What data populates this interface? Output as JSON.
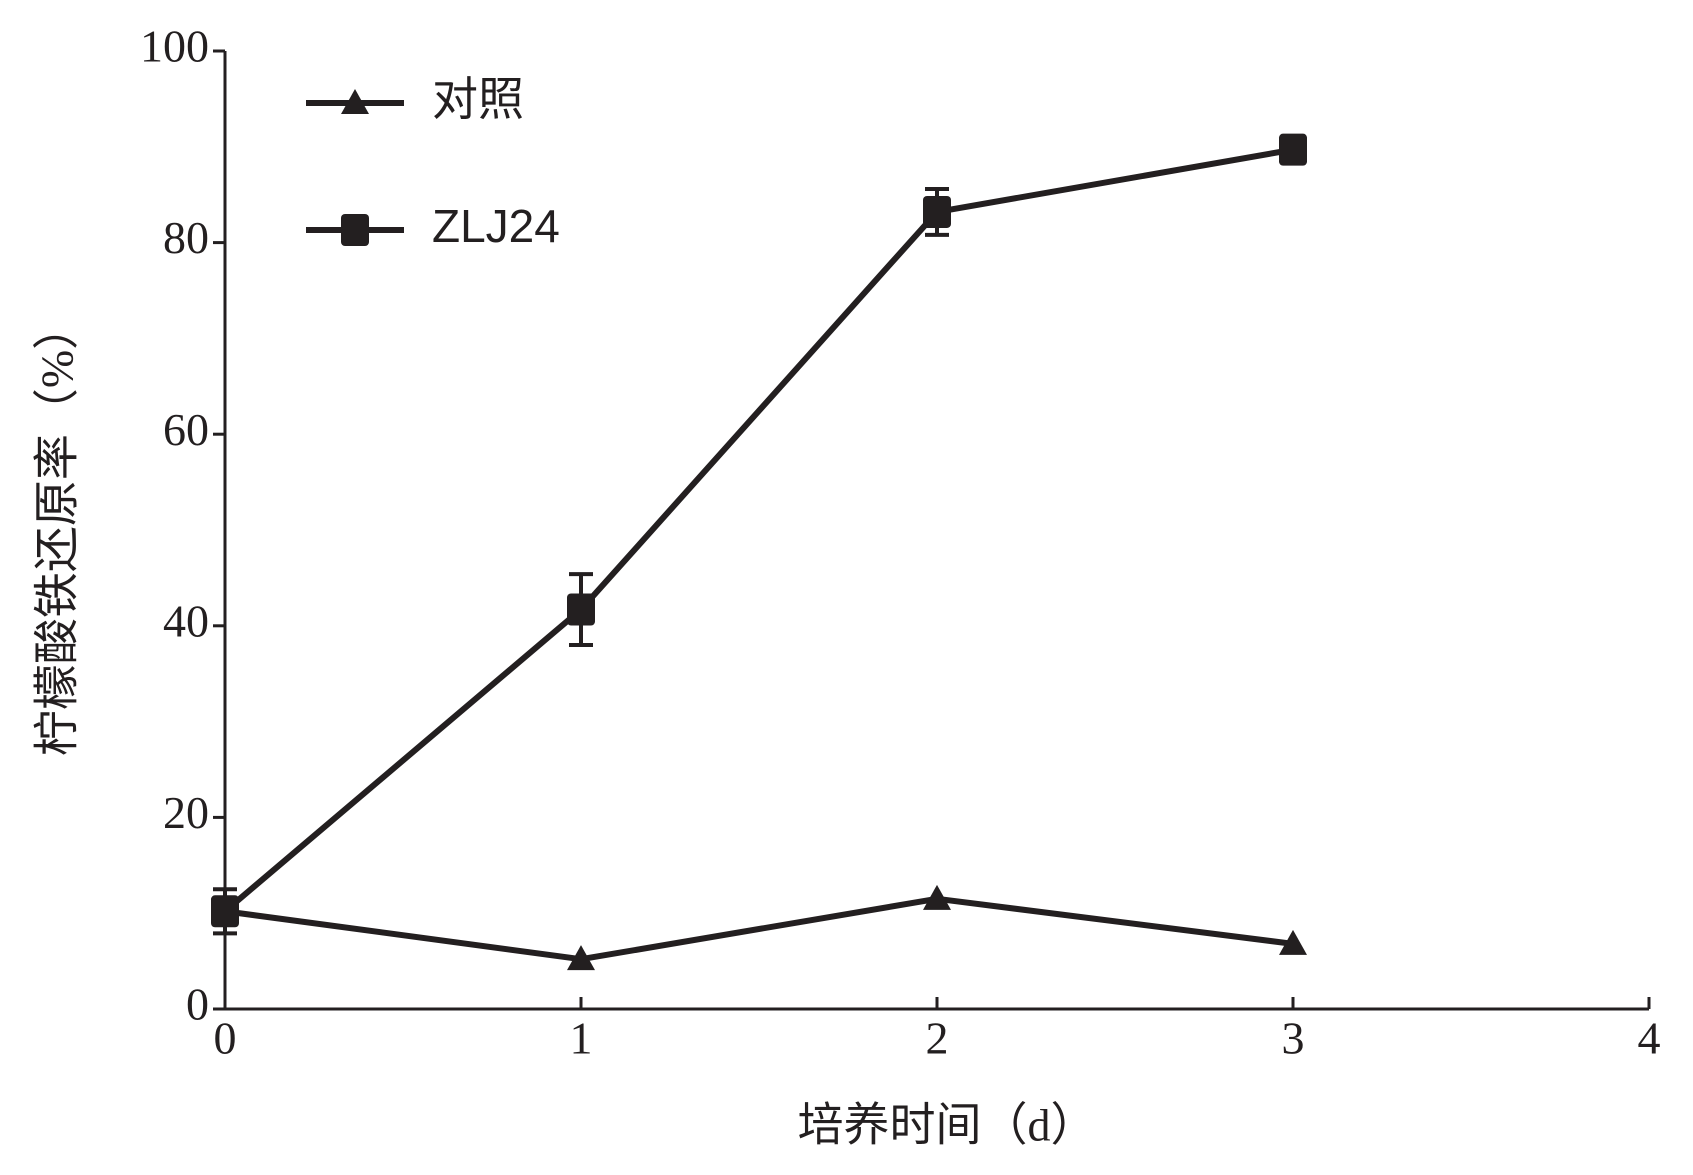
{
  "chart_data": {
    "type": "line",
    "x_label": "培养时间（d）",
    "y_label": "柠檬酸铁还原率（%）",
    "x": [
      0,
      1,
      2,
      3
    ],
    "series": [
      {
        "name": "对照",
        "color": "#231f20",
        "marker": "triangle",
        "values": [
          10.2,
          5.2,
          11.5,
          6.8
        ]
      },
      {
        "name": "ZLJ24",
        "color": "#231f20",
        "marker": "square",
        "values": [
          10.2,
          41.7,
          83.2,
          89.7
        ],
        "errors": [
          2.3,
          3.7,
          2.4,
          1
        ]
      }
    ],
    "xlim": [
      0,
      4
    ],
    "xticks": [
      0,
      1,
      2,
      3,
      4
    ],
    "ylim": [
      0,
      100
    ],
    "yticks": [
      0,
      20,
      40,
      60,
      80,
      100
    ],
    "legend": "upper-left",
    "grid": false
  }
}
